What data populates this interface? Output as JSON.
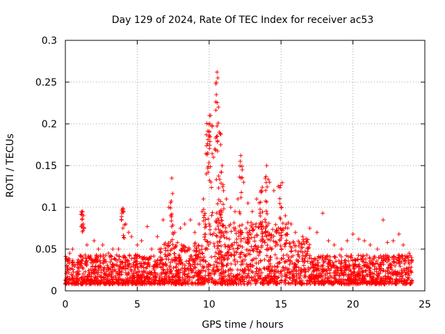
{
  "chart_data": {
    "type": "scatter",
    "title": "Day 129 of 2024, Rate Of TEC Index for receiver ac53",
    "xlabel": "GPS time / hours",
    "ylabel": "ROTI / TECUs",
    "xlim": [
      0,
      25
    ],
    "ylim": [
      0,
      0.3
    ],
    "x_ticks": [
      0,
      5,
      10,
      15,
      20,
      25
    ],
    "x_tick_labels": [
      "0",
      "5",
      "10",
      "15",
      "20",
      "25"
    ],
    "y_ticks": [
      0,
      0.05,
      0.1,
      0.15,
      0.2,
      0.25,
      0.3
    ],
    "y_tick_labels": [
      "0",
      "0.05",
      "0.1",
      "0.15",
      "0.2",
      "0.25",
      "0.3"
    ],
    "grid": true,
    "marker": "+",
    "color": "#ff0000",
    "series": [
      {
        "name": "ROTI",
        "note": "dense cloud of ~ROTI samples over 0-24 h; representative subset of visible points",
        "points": [
          [
            0.1,
            0.03
          ],
          [
            0.3,
            0.045
          ],
          [
            0.5,
            0.05
          ],
          [
            0.8,
            0.02
          ],
          [
            1.0,
            0.035
          ],
          [
            1.2,
            0.095
          ],
          [
            1.25,
            0.09
          ],
          [
            1.3,
            0.075
          ],
          [
            1.5,
            0.055
          ],
          [
            1.7,
            0.04
          ],
          [
            2.0,
            0.06
          ],
          [
            2.3,
            0.05
          ],
          [
            2.6,
            0.055
          ],
          [
            3.0,
            0.045
          ],
          [
            3.3,
            0.05
          ],
          [
            3.7,
            0.05
          ],
          [
            4.0,
            0.099
          ],
          [
            4.2,
            0.08
          ],
          [
            4.4,
            0.07
          ],
          [
            4.6,
            0.065
          ],
          [
            5.0,
            0.055
          ],
          [
            5.3,
            0.06
          ],
          [
            5.7,
            0.077
          ],
          [
            6.0,
            0.05
          ],
          [
            6.4,
            0.065
          ],
          [
            6.8,
            0.085
          ],
          [
            7.2,
            0.1
          ],
          [
            7.4,
            0.135
          ],
          [
            7.6,
            0.07
          ],
          [
            8.0,
            0.075
          ],
          [
            8.3,
            0.08
          ],
          [
            8.7,
            0.085
          ],
          [
            9.0,
            0.07
          ],
          [
            9.3,
            0.08
          ],
          [
            9.6,
            0.11
          ],
          [
            9.8,
            0.14
          ],
          [
            9.9,
            0.165
          ],
          [
            10.0,
            0.185
          ],
          [
            10.1,
            0.21
          ],
          [
            10.2,
            0.198
          ],
          [
            10.3,
            0.16
          ],
          [
            10.4,
            0.17
          ],
          [
            10.5,
            0.235
          ],
          [
            10.55,
            0.262
          ],
          [
            10.6,
            0.255
          ],
          [
            10.65,
            0.22
          ],
          [
            10.7,
            0.19
          ],
          [
            10.8,
            0.175
          ],
          [
            10.9,
            0.15
          ],
          [
            11.0,
            0.12
          ],
          [
            11.2,
            0.11
          ],
          [
            11.5,
            0.1
          ],
          [
            11.8,
            0.095
          ],
          [
            12.0,
            0.11
          ],
          [
            12.2,
            0.162
          ],
          [
            12.3,
            0.145
          ],
          [
            12.4,
            0.13
          ],
          [
            12.7,
            0.105
          ],
          [
            13.0,
            0.095
          ],
          [
            13.3,
            0.11
          ],
          [
            13.6,
            0.12
          ],
          [
            13.9,
            0.135
          ],
          [
            14.0,
            0.15
          ],
          [
            14.2,
            0.13
          ],
          [
            14.5,
            0.12
          ],
          [
            14.8,
            0.125
          ],
          [
            15.0,
            0.1
          ],
          [
            15.3,
            0.09
          ],
          [
            15.7,
            0.08
          ],
          [
            16.0,
            0.07
          ],
          [
            16.5,
            0.065
          ],
          [
            17.0,
            0.075
          ],
          [
            17.5,
            0.07
          ],
          [
            17.9,
            0.093
          ],
          [
            18.3,
            0.06
          ],
          [
            18.7,
            0.055
          ],
          [
            19.2,
            0.05
          ],
          [
            19.6,
            0.06
          ],
          [
            20.0,
            0.068
          ],
          [
            20.4,
            0.062
          ],
          [
            20.8,
            0.06
          ],
          [
            21.2,
            0.055
          ],
          [
            21.7,
            0.05
          ],
          [
            22.1,
            0.085
          ],
          [
            22.4,
            0.058
          ],
          [
            22.8,
            0.06
          ],
          [
            23.2,
            0.068
          ],
          [
            23.5,
            0.055
          ],
          [
            23.9,
            0.045
          ],
          [
            0.5,
            0.015
          ],
          [
            2.0,
            0.012
          ],
          [
            4.0,
            0.01
          ],
          [
            6.0,
            0.014
          ],
          [
            8.0,
            0.012
          ],
          [
            10.0,
            0.02
          ],
          [
            12.0,
            0.015
          ],
          [
            14.0,
            0.012
          ],
          [
            16.0,
            0.01
          ],
          [
            18.0,
            0.012
          ],
          [
            20.0,
            0.01
          ],
          [
            22.0,
            0.012
          ],
          [
            24.0,
            0.01
          ]
        ]
      }
    ]
  }
}
